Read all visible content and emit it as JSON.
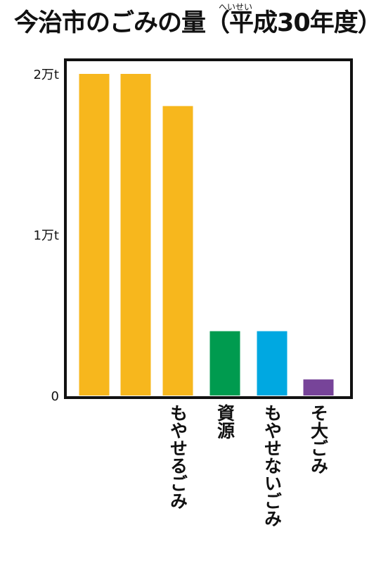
{
  "chart_data": {
    "type": "bar",
    "title": "今治市のごみの量（平成30年度）",
    "title_reading": "へいせい",
    "categories": [
      "",
      "",
      "もやせるごみ",
      "資源",
      "もやせないごみ",
      "そ大ごみ"
    ],
    "values": [
      20000,
      20000,
      18000,
      4000,
      4000,
      1000
    ],
    "colors": [
      "#F7B71D",
      "#F7B71D",
      "#F7B71D",
      "#009B4F",
      "#00A8E1",
      "#774499"
    ],
    "y_ticks": [
      {
        "value": 0,
        "label": "0"
      },
      {
        "value": 10000,
        "label": "1万t"
      },
      {
        "value": 20000,
        "label": "2万t"
      }
    ],
    "ylim": [
      0,
      20000
    ],
    "grid": false,
    "legend": "none"
  }
}
